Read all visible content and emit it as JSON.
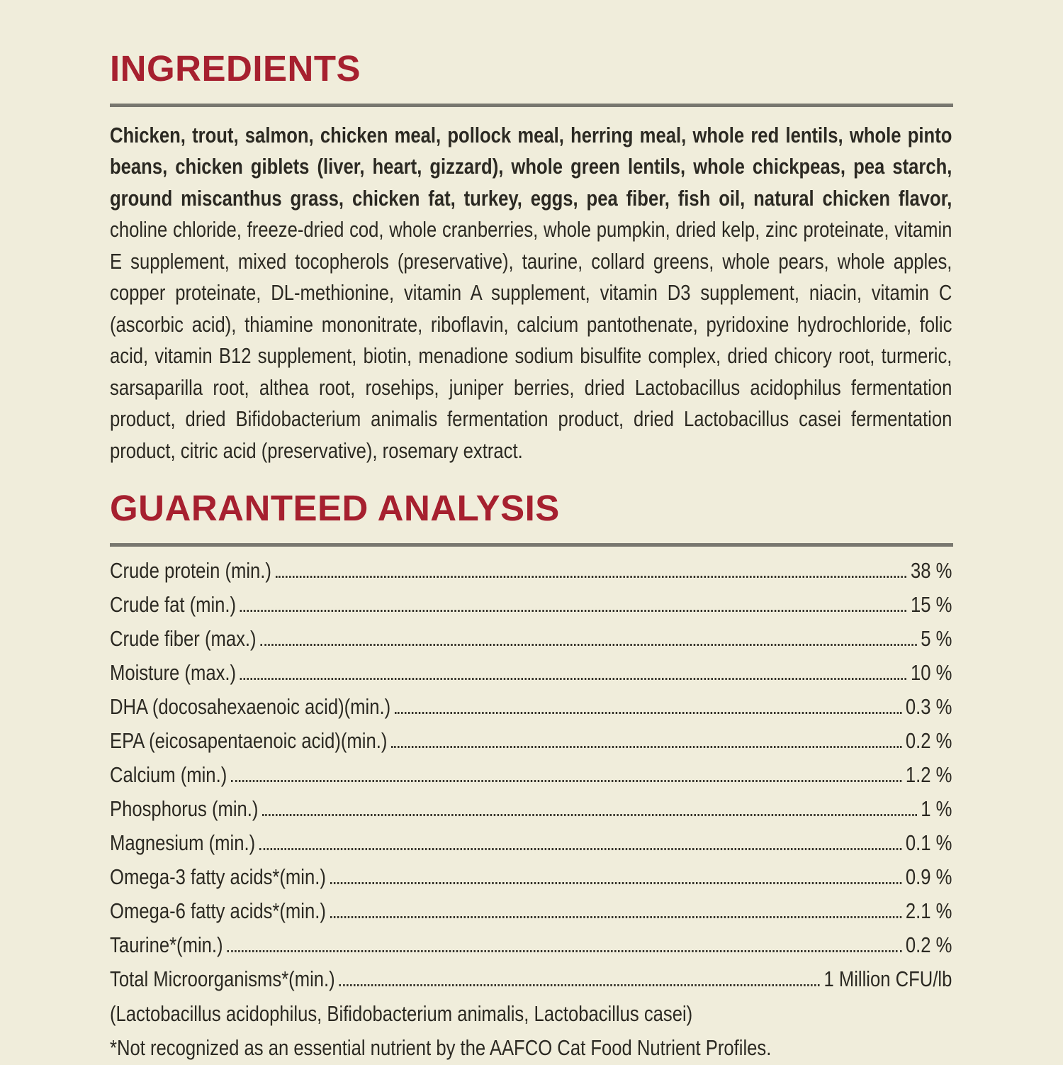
{
  "colors": {
    "background": "#F0EDDB",
    "accent_red": "#A6202F",
    "rule_gray": "#78776F",
    "text": "#2B2922"
  },
  "ingredients": {
    "title": "INGREDIENTS",
    "bold_text": "Chicken, trout, salmon, chicken meal, pollock meal, herring meal, whole red lentils, whole pinto beans, chicken giblets (liver, heart, gizzard), whole green lentils, whole chickpeas, pea starch, ground miscanthus grass, chicken fat, turkey, eggs, pea fiber, fish oil, natural chicken flavor,",
    "regular_text": " choline chloride, freeze-dried cod, whole cranberries, whole pumpkin, dried kelp, zinc proteinate, vitamin E supplement, mixed tocopherols (preservative), taurine, collard greens, whole pears, whole apples, copper proteinate, DL-methionine, vitamin A supplement, vitamin D3 supplement, niacin, vitamin C (ascorbic acid), thiamine mononitrate, riboflavin, calcium pantothenate, pyridoxine hydrochloride, folic acid, vitamin B12 supplement, biotin, menadione sodium bisulfite complex, dried chicory root, turmeric, sarsaparilla root, althea root, rosehips, juniper berries, dried Lactobacillus acidophilus fermentation product, dried Bifidobacterium animalis fermentation product, dried Lactobacillus casei fermentation product, citric acid (preservative), rosemary extract."
  },
  "analysis": {
    "title": "GUARANTEED ANALYSIS",
    "rows": [
      {
        "label": "Crude protein (min.)",
        "value": "38 %"
      },
      {
        "label": "Crude fat (min.)",
        "value": "15 %"
      },
      {
        "label": "Crude fiber (max.)",
        "value": "5 %"
      },
      {
        "label": "Moisture (max.)",
        "value": "10 %"
      },
      {
        "label": "DHA (docosahexaenoic acid)(min.)",
        "value": "0.3 %"
      },
      {
        "label": "EPA (eicosapentaenoic acid)(min.)",
        "value": "0.2 %"
      },
      {
        "label": "Calcium (min.)",
        "value": "1.2 %"
      },
      {
        "label": "Phosphorus (min.)",
        "value": "1 %"
      },
      {
        "label": "Magnesium (min.)",
        "value": "0.1 %"
      },
      {
        "label": "Omega-3 fatty acids*(min.)",
        "value": "0.9 %"
      },
      {
        "label": "Omega-6 fatty acids*(min.)",
        "value": "2.1 %"
      },
      {
        "label": "Taurine*(min.)",
        "value": "0.2 %"
      },
      {
        "label": "Total Microorganisms*(min.)",
        "value": "1 Million CFU/lb"
      }
    ],
    "note": "(Lactobacillus acidophilus, Bifidobacterium animalis, Lactobacillus casei)",
    "footnote": "*Not recognized as an essential nutrient by the AAFCO Cat Food Nutrient Profiles."
  }
}
